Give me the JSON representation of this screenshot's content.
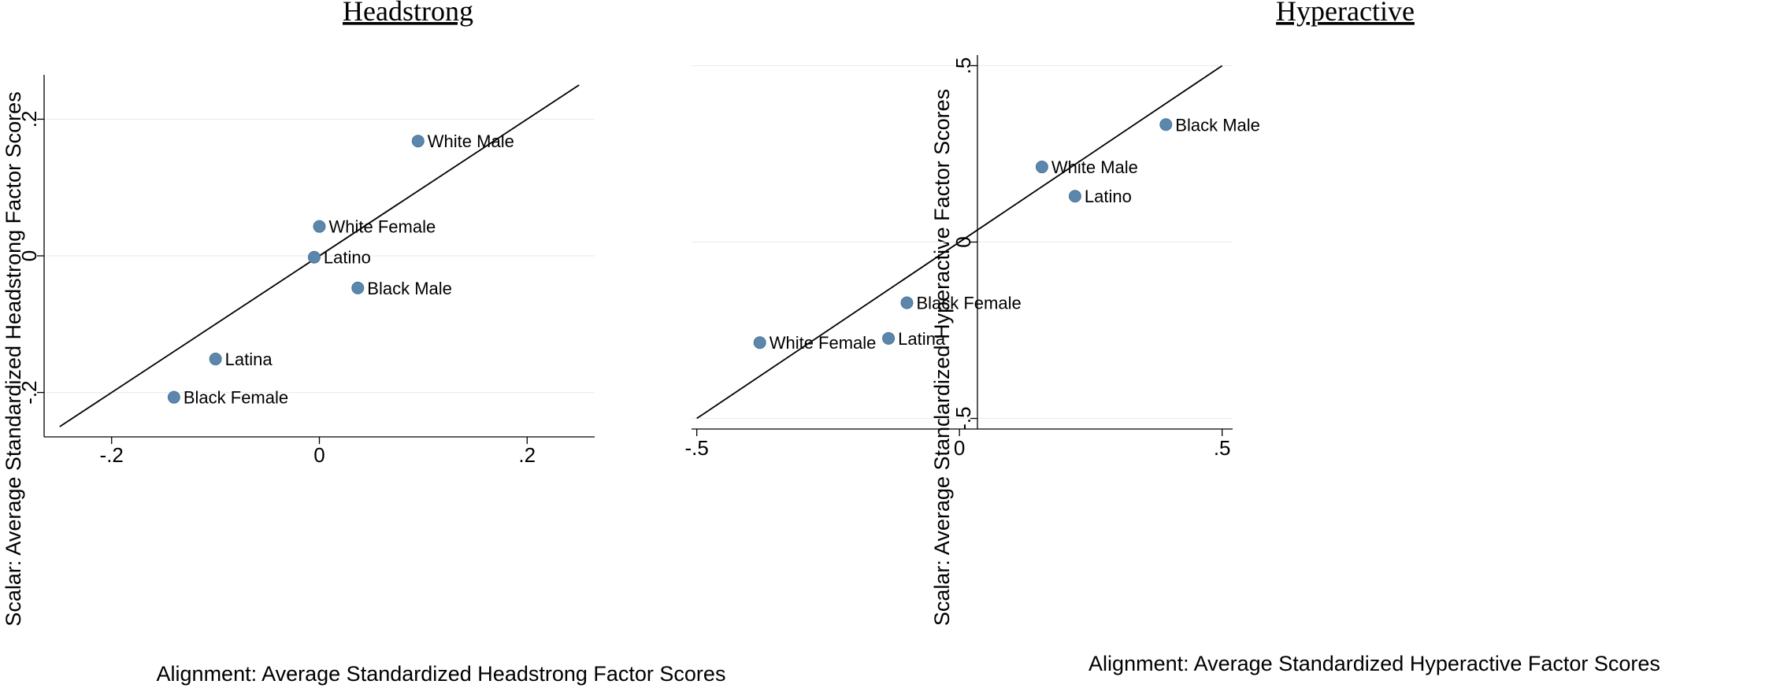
{
  "chart_data": [
    {
      "type": "scatter",
      "title": "Headstrong",
      "xlabel": "Alignment: Average Standardized Headstrong Factor Scores",
      "ylabel": "Scalar: Average Standardized Headstrong Factor Scores",
      "xlim": [
        -0.265,
        0.265
      ],
      "ylim": [
        -0.265,
        0.265
      ],
      "xticks": [
        {
          "value": -0.2,
          "label": "-.2"
        },
        {
          "value": 0,
          "label": "0"
        },
        {
          "value": 0.2,
          "label": ".2"
        }
      ],
      "yticks": [
        {
          "value": -0.2,
          "label": "-.2"
        },
        {
          "value": 0,
          "label": "0"
        },
        {
          "value": 0.2,
          "label": ".2"
        }
      ],
      "grid": true,
      "reference_line": {
        "x": [
          -0.25,
          0.25
        ],
        "y": [
          -0.25,
          0.25
        ]
      },
      "points": [
        {
          "label": "White Male",
          "x": 0.095,
          "y": 0.168
        },
        {
          "label": "White Female",
          "x": 0.0,
          "y": 0.043
        },
        {
          "label": "Latino",
          "x": -0.005,
          "y": -0.002
        },
        {
          "label": "Black Male",
          "x": 0.037,
          "y": -0.047
        },
        {
          "label": "Latina",
          "x": -0.1,
          "y": -0.151
        },
        {
          "label": "Black Female",
          "x": -0.14,
          "y": -0.207
        }
      ]
    },
    {
      "type": "scatter",
      "title": "Hyperactive",
      "xlabel": "Alignment: Average Standardized Hyperactive Factor Scores",
      "ylabel": "Scalar: Average Standardized Hyperactive Factor Scores",
      "xlim": [
        -0.51,
        0.52
      ],
      "ylim": [
        -0.53,
        0.53
      ],
      "xticks": [
        {
          "value": -0.5,
          "label": "-.5"
        },
        {
          "value": 0,
          "label": "0"
        },
        {
          "value": 0.5,
          "label": ".5"
        }
      ],
      "yticks": [
        {
          "value": -0.5,
          "label": "-.5"
        },
        {
          "value": 0,
          "label": "0"
        },
        {
          "value": 0.5,
          "label": ".5"
        }
      ],
      "grid": true,
      "reference_line": {
        "x": [
          -0.5,
          0.5
        ],
        "y": [
          -0.5,
          0.5
        ]
      },
      "points": [
        {
          "label": "Black Male",
          "x": 0.393,
          "y": 0.333
        },
        {
          "label": "White Male",
          "x": 0.157,
          "y": 0.213
        },
        {
          "label": "Latino",
          "x": 0.22,
          "y": 0.13
        },
        {
          "label": "Black Female",
          "x": -0.1,
          "y": -0.172
        },
        {
          "label": "Latina",
          "x": -0.135,
          "y": -0.273
        },
        {
          "label": "White Female",
          "x": -0.38,
          "y": -0.285
        }
      ]
    }
  ]
}
